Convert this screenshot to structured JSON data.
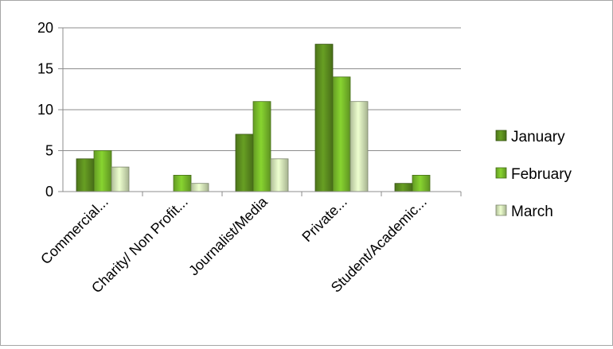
{
  "chart_data": {
    "type": "bar",
    "categories": [
      "Commercial...",
      "Charity/ Non Profit...",
      "Journalist/Media",
      "Private...",
      "Student/Academic..."
    ],
    "series": [
      {
        "name": "January",
        "values": [
          4,
          0,
          7,
          18,
          1
        ],
        "color": "#5a8a1e"
      },
      {
        "name": "February",
        "values": [
          5,
          2,
          11,
          14,
          2
        ],
        "color": "#76b82a"
      },
      {
        "name": "March",
        "values": [
          3,
          1,
          4,
          11,
          0
        ],
        "color": "#cfe0b4"
      }
    ],
    "ylim": [
      0,
      20
    ],
    "yticks": [
      0,
      5,
      10,
      15,
      20
    ],
    "grid": true,
    "legend": "right"
  }
}
